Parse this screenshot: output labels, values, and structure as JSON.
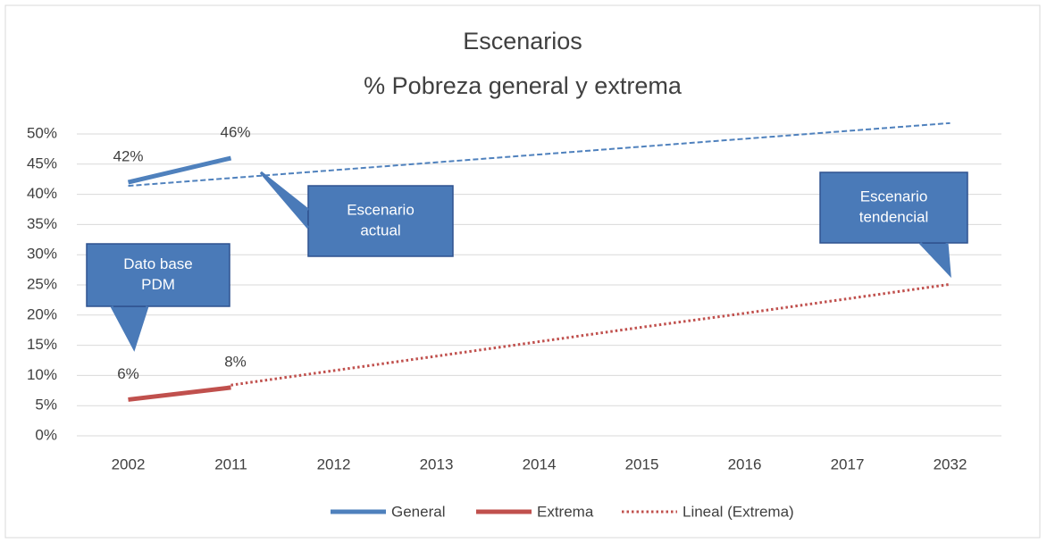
{
  "chart_data": {
    "type": "line",
    "title": "Escenarios",
    "subtitle": "% Pobreza general y extrema",
    "categories": [
      "2002",
      "2011",
      "2012",
      "2013",
      "2014",
      "2015",
      "2016",
      "2017",
      "2032"
    ],
    "series": [
      {
        "name": "General",
        "color": "#4f81bd",
        "style": "solid",
        "values": [
          42,
          46,
          null,
          null,
          null,
          null,
          null,
          null,
          null
        ],
        "value_labels": [
          "42%",
          "46%",
          null,
          null,
          null,
          null,
          null,
          null,
          null
        ]
      },
      {
        "name": "Extrema",
        "color": "#c0504d",
        "style": "solid",
        "values": [
          6,
          8,
          null,
          null,
          null,
          null,
          null,
          null,
          null
        ],
        "value_labels": [
          "6%",
          "8%",
          null,
          null,
          null,
          null,
          null,
          null,
          null
        ]
      },
      {
        "color": "#4f81bd",
        "style": "dashed",
        "values": [
          41.4,
          42.7,
          44.0,
          45.3,
          46.6,
          47.9,
          49.2,
          50.5,
          51.8
        ]
      },
      {
        "name": "Lineal (Extrema)",
        "color": "#c0504d",
        "style": "dotted",
        "values": [
          null,
          8.4,
          10.8,
          13.2,
          15.6,
          18.0,
          20.3,
          22.7,
          25.1
        ]
      }
    ],
    "ylim": [
      0,
      50
    ],
    "yticks": [
      {
        "value": 0,
        "label": "0%"
      },
      {
        "value": 5,
        "label": "5%"
      },
      {
        "value": 10,
        "label": "10%"
      },
      {
        "value": 15,
        "label": "15%"
      },
      {
        "value": 20,
        "label": "20%"
      },
      {
        "value": 25,
        "label": "25%"
      },
      {
        "value": 30,
        "label": "30%"
      },
      {
        "value": 35,
        "label": "35%"
      },
      {
        "value": 40,
        "label": "40%"
      },
      {
        "value": 45,
        "label": "45%"
      },
      {
        "value": 50,
        "label": "50%"
      }
    ],
    "grid": true,
    "legend": "bottom",
    "annotations": [
      {
        "lines": [
          "Escenario",
          "actual"
        ]
      },
      {
        "lines": [
          "Dato base",
          "PDM"
        ]
      },
      {
        "lines": [
          "Escenario",
          "tendencial"
        ]
      }
    ]
  }
}
